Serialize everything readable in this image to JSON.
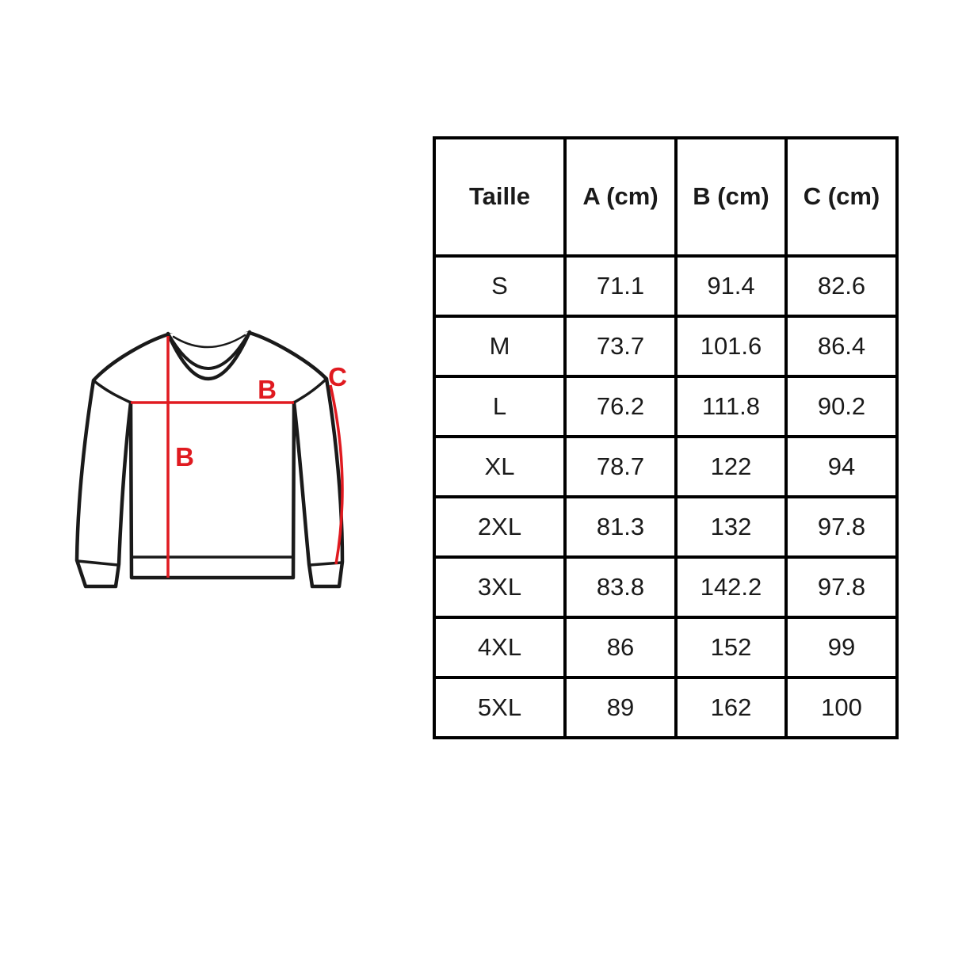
{
  "illustration": {
    "description": "crew-neck sweatshirt schematic with measurement lines",
    "labels": {
      "chest_line": "B",
      "length_line": "B",
      "sleeve_line": "C"
    },
    "colors": {
      "outline": "#1a1a1a",
      "measure_line": "#e01a20"
    }
  },
  "table": {
    "headers": [
      "Taille",
      "A (cm)",
      "B (cm)",
      "C (cm)"
    ],
    "rows": [
      [
        "S",
        "71.1",
        "91.4",
        "82.6"
      ],
      [
        "M",
        "73.7",
        "101.6",
        "86.4"
      ],
      [
        "L",
        "76.2",
        "111.8",
        "90.2"
      ],
      [
        "XL",
        "78.7",
        "122",
        "94"
      ],
      [
        "2XL",
        "81.3",
        "132",
        "97.8"
      ],
      [
        "3XL",
        "83.8",
        "142.2",
        "97.8"
      ],
      [
        "4XL",
        "86",
        "152",
        "99"
      ],
      [
        "5XL",
        "89",
        "162",
        "100"
      ]
    ],
    "border_color": "#000000",
    "text_color": "#1a1a1a"
  }
}
